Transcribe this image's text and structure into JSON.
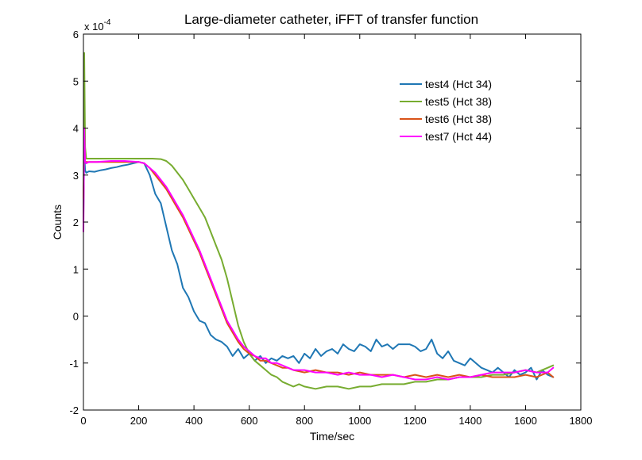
{
  "chart_data": {
    "type": "line",
    "title": "Large-diameter catheter, iFFT of transfer function",
    "xlabel": "Time/sec",
    "ylabel": "Counts",
    "y_multiplier_label": "x 10",
    "y_multiplier_exponent": "-4",
    "xlim": [
      0,
      1800
    ],
    "ylim": [
      -2,
      6
    ],
    "xticks": [
      0,
      200,
      400,
      600,
      800,
      1000,
      1200,
      1400,
      1600,
      1800
    ],
    "yticks": [
      -2,
      -1,
      0,
      1,
      2,
      3,
      4,
      5,
      6
    ],
    "grid": false,
    "legend_position": "top-right",
    "series": [
      {
        "name": "test4 (Hct 34)",
        "color": "#1f77b4",
        "x": [
          0,
          3,
          6,
          10,
          20,
          40,
          60,
          80,
          100,
          120,
          140,
          160,
          180,
          200,
          220,
          240,
          260,
          280,
          300,
          320,
          340,
          360,
          380,
          400,
          420,
          440,
          460,
          480,
          500,
          520,
          540,
          560,
          580,
          600,
          620,
          640,
          660,
          680,
          700,
          720,
          740,
          760,
          780,
          800,
          820,
          840,
          860,
          880,
          900,
          920,
          940,
          960,
          980,
          1000,
          1020,
          1040,
          1060,
          1080,
          1100,
          1120,
          1140,
          1160,
          1180,
          1200,
          1220,
          1240,
          1260,
          1280,
          1300,
          1320,
          1340,
          1360,
          1380,
          1400,
          1420,
          1440,
          1460,
          1480,
          1500,
          1520,
          1540,
          1560,
          1580,
          1600,
          1620,
          1640,
          1660,
          1680,
          1700
        ],
        "y": [
          2.2,
          3.5,
          3.1,
          3.05,
          3.08,
          3.07,
          3.1,
          3.12,
          3.15,
          3.17,
          3.2,
          3.22,
          3.25,
          3.28,
          3.25,
          3.0,
          2.6,
          2.4,
          1.9,
          1.4,
          1.1,
          0.6,
          0.4,
          0.1,
          -0.1,
          -0.15,
          -0.4,
          -0.5,
          -0.55,
          -0.65,
          -0.85,
          -0.7,
          -0.9,
          -0.8,
          -0.95,
          -0.85,
          -1.0,
          -0.9,
          -0.95,
          -0.85,
          -0.9,
          -0.85,
          -1.0,
          -0.8,
          -0.9,
          -0.7,
          -0.85,
          -0.75,
          -0.7,
          -0.8,
          -0.6,
          -0.7,
          -0.75,
          -0.6,
          -0.65,
          -0.75,
          -0.5,
          -0.65,
          -0.6,
          -0.7,
          -0.6,
          -0.6,
          -0.6,
          -0.65,
          -0.75,
          -0.7,
          -0.5,
          -0.8,
          -0.9,
          -0.75,
          -0.95,
          -1.0,
          -1.05,
          -0.9,
          -1.0,
          -1.1,
          -1.15,
          -1.2,
          -1.1,
          -1.2,
          -1.3,
          -1.15,
          -1.25,
          -1.2,
          -1.1,
          -1.35,
          -1.15,
          -1.25,
          -1.3
        ]
      },
      {
        "name": "test5 (Hct 38)",
        "color": "#77ac30",
        "x": [
          0,
          3,
          6,
          10,
          20,
          50,
          100,
          150,
          200,
          250,
          280,
          300,
          320,
          340,
          360,
          380,
          400,
          420,
          440,
          460,
          480,
          500,
          520,
          540,
          560,
          580,
          600,
          620,
          640,
          660,
          680,
          700,
          720,
          740,
          760,
          780,
          800,
          840,
          880,
          920,
          960,
          1000,
          1040,
          1080,
          1120,
          1160,
          1200,
          1240,
          1280,
          1320,
          1360,
          1400,
          1440,
          1480,
          1520,
          1560,
          1600,
          1640,
          1680,
          1700
        ],
        "y": [
          2.0,
          5.6,
          3.6,
          3.35,
          3.35,
          3.35,
          3.35,
          3.35,
          3.35,
          3.35,
          3.34,
          3.3,
          3.2,
          3.05,
          2.9,
          2.7,
          2.5,
          2.3,
          2.1,
          1.8,
          1.5,
          1.2,
          0.8,
          0.3,
          -0.2,
          -0.55,
          -0.8,
          -0.95,
          -1.05,
          -1.15,
          -1.25,
          -1.3,
          -1.4,
          -1.45,
          -1.5,
          -1.45,
          -1.5,
          -1.55,
          -1.5,
          -1.5,
          -1.55,
          -1.5,
          -1.5,
          -1.45,
          -1.45,
          -1.45,
          -1.4,
          -1.4,
          -1.35,
          -1.35,
          -1.3,
          -1.3,
          -1.3,
          -1.25,
          -1.25,
          -1.2,
          -1.15,
          -1.2,
          -1.1,
          -1.05
        ]
      },
      {
        "name": "test6 (Hct 38)",
        "color": "#d95319",
        "x": [
          0,
          3,
          6,
          10,
          20,
          50,
          100,
          150,
          200,
          220,
          240,
          260,
          280,
          300,
          320,
          340,
          360,
          380,
          400,
          420,
          440,
          460,
          480,
          500,
          520,
          540,
          560,
          580,
          600,
          620,
          640,
          660,
          680,
          700,
          720,
          740,
          760,
          800,
          840,
          880,
          920,
          960,
          1000,
          1040,
          1080,
          1120,
          1160,
          1200,
          1240,
          1280,
          1320,
          1360,
          1400,
          1440,
          1480,
          1520,
          1560,
          1600,
          1640,
          1680,
          1700
        ],
        "y": [
          2.5,
          3.6,
          3.3,
          3.28,
          3.28,
          3.28,
          3.28,
          3.28,
          3.28,
          3.25,
          3.15,
          3.0,
          2.85,
          2.7,
          2.5,
          2.3,
          2.1,
          1.85,
          1.6,
          1.35,
          1.05,
          0.75,
          0.45,
          0.15,
          -0.15,
          -0.35,
          -0.55,
          -0.7,
          -0.8,
          -0.85,
          -0.95,
          -0.95,
          -1.0,
          -1.05,
          -1.1,
          -1.1,
          -1.15,
          -1.2,
          -1.15,
          -1.2,
          -1.2,
          -1.25,
          -1.2,
          -1.25,
          -1.25,
          -1.25,
          -1.3,
          -1.25,
          -1.3,
          -1.25,
          -1.3,
          -1.25,
          -1.3,
          -1.25,
          -1.3,
          -1.3,
          -1.3,
          -1.25,
          -1.3,
          -1.2,
          -1.3
        ]
      },
      {
        "name": "test7 (Hct 44)",
        "color": "#ff00ff",
        "x": [
          0,
          3,
          6,
          10,
          20,
          50,
          100,
          150,
          200,
          220,
          240,
          260,
          280,
          300,
          320,
          340,
          360,
          380,
          400,
          420,
          440,
          460,
          480,
          500,
          520,
          540,
          560,
          580,
          600,
          620,
          640,
          660,
          680,
          700,
          720,
          740,
          760,
          800,
          840,
          880,
          920,
          960,
          1000,
          1040,
          1080,
          1120,
          1160,
          1200,
          1240,
          1280,
          1320,
          1360,
          1400,
          1440,
          1480,
          1520,
          1560,
          1600,
          1640,
          1680,
          1700
        ],
        "y": [
          1.8,
          4.0,
          3.3,
          3.25,
          3.28,
          3.28,
          3.3,
          3.3,
          3.28,
          3.25,
          3.15,
          3.05,
          2.9,
          2.75,
          2.55,
          2.35,
          2.15,
          1.9,
          1.65,
          1.4,
          1.1,
          0.8,
          0.5,
          0.2,
          -0.1,
          -0.3,
          -0.5,
          -0.65,
          -0.75,
          -0.85,
          -0.9,
          -0.9,
          -1.0,
          -1.0,
          -1.05,
          -1.1,
          -1.15,
          -1.15,
          -1.2,
          -1.2,
          -1.25,
          -1.2,
          -1.25,
          -1.25,
          -1.3,
          -1.25,
          -1.3,
          -1.35,
          -1.35,
          -1.3,
          -1.35,
          -1.3,
          -1.3,
          -1.25,
          -1.2,
          -1.2,
          -1.2,
          -1.15,
          -1.2,
          -1.2,
          -1.1
        ]
      }
    ]
  }
}
